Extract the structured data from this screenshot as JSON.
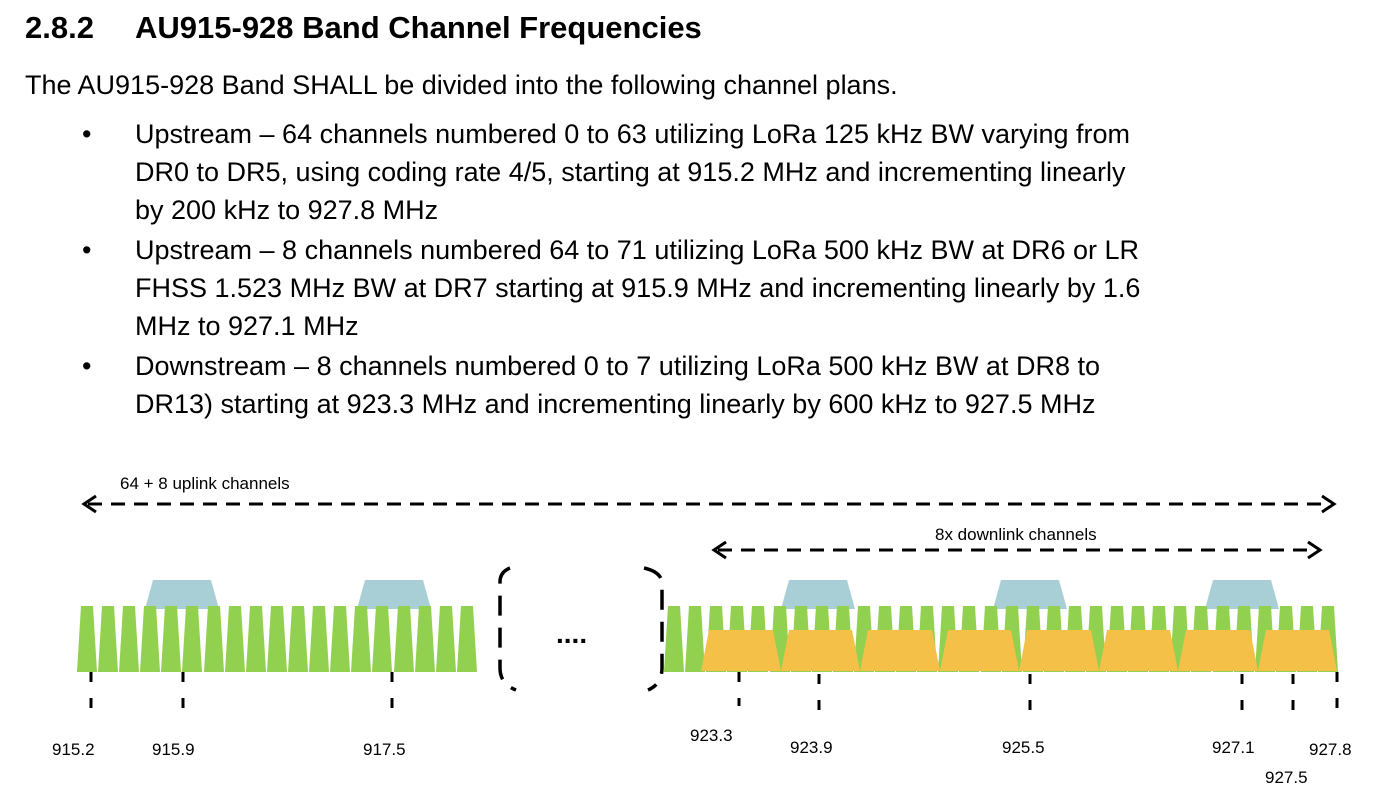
{
  "section": {
    "number": "2.8.2",
    "title": "AU915-928 Band Channel Frequencies",
    "intro": "The AU915-928  Band SHALL be divided into the following channel plans."
  },
  "bullets": [
    {
      "line1": "Upstream – 64 channels numbered 0 to 63 utilizing LoRa 125 kHz BW varying from",
      "line2": "DR0 to DR5, using coding rate 4/5, starting at 915.2 MHz and incrementing linearly",
      "line3": "by 200 kHz to 927.8 MHz"
    },
    {
      "line1": "Upstream – 8 channels numbered 64 to 71 utilizing LoRa 500 kHz BW at DR6 or LR",
      "line2": "FHSS 1.523 MHz BW at DR7 starting at 915.9 MHz and incrementing linearly by 1.6",
      "line3": "MHz to 927.1 MHz"
    },
    {
      "line1": "Downstream – 8 channels numbered 0 to 7 utilizing LoRa 500 kHz BW at DR8 to",
      "line2": "DR13) starting at 923.3 MHz and incrementing linearly by 600 kHz to 927.5 MHz"
    }
  ],
  "bullet_glyph": "•",
  "figure": {
    "uplink_label": "64 + 8  uplink channels",
    "downlink_label": "8x downlink channels",
    "ellipsis": "....",
    "freq_labels": [
      "915.2",
      "915.9",
      "917.5",
      "923.3",
      "923.9",
      "925.5",
      "927.1",
      "927.8",
      "927.5"
    ],
    "colors": {
      "uplink_125": "#92d050",
      "uplink_500": "#a9cfd6",
      "downlink_500": "#f4c048"
    }
  }
}
